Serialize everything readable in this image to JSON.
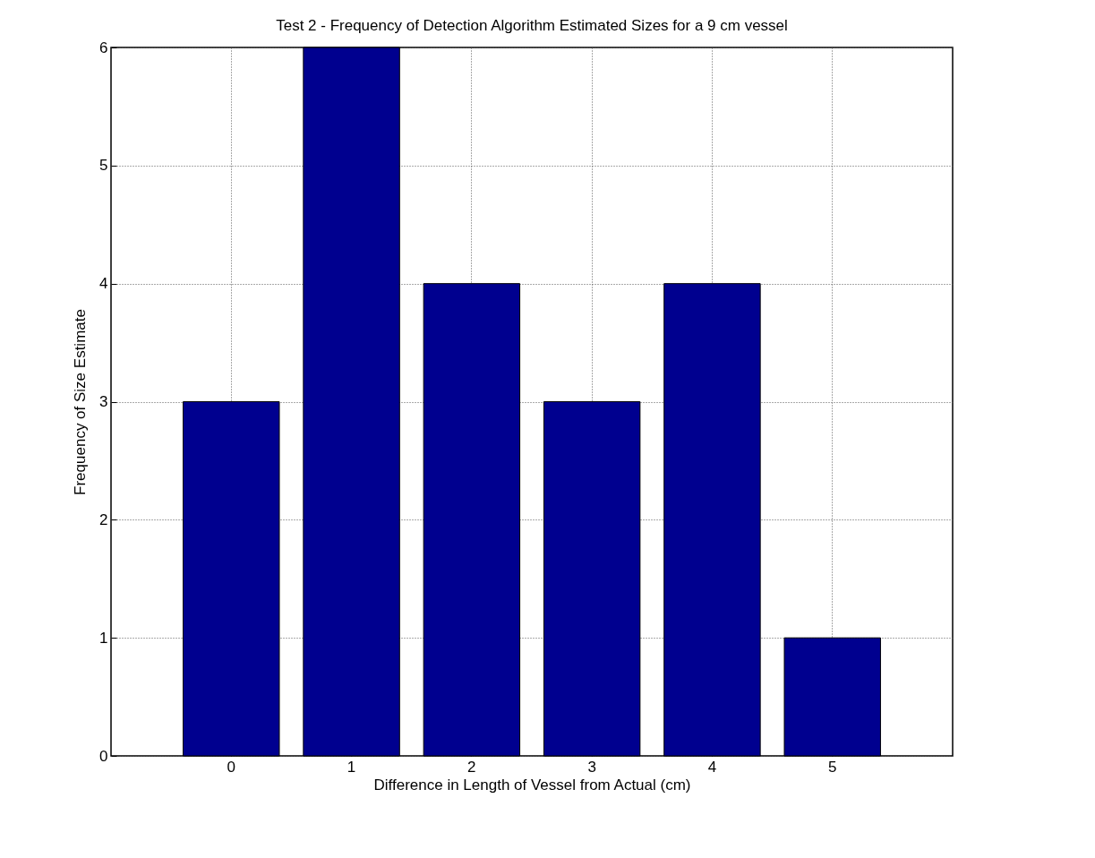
{
  "chart_data": {
    "type": "bar",
    "title": "Test 2 - Frequency of Detection Algorithm Estimated Sizes for a 9 cm vessel",
    "xlabel": "Difference in Length of Vessel from Actual (cm)",
    "ylabel": "Frequency of Size Estimate",
    "categories": [
      "0",
      "1",
      "2",
      "3",
      "4",
      "5"
    ],
    "values": [
      3,
      6,
      4,
      3,
      4,
      1
    ],
    "color": "#00008f",
    "ylim": [
      0,
      6
    ],
    "yticks": [
      0,
      1,
      2,
      3,
      4,
      5,
      6
    ],
    "grid": true
  }
}
